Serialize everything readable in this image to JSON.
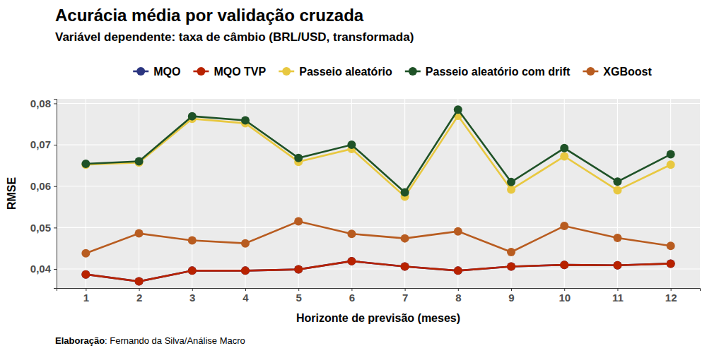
{
  "chart_data": {
    "type": "line",
    "title": "Acurácia média por validação cruzada",
    "subtitle": "Variável dependente: taxa de câmbio (BRL/USD, transformada)",
    "caption": "Elaboração: Fernando da Silva/Análise Macro",
    "x_label": "Horizonte de previsão (meses)",
    "y_label": "RMSE",
    "x": [
      1,
      2,
      3,
      4,
      5,
      6,
      7,
      8,
      9,
      10,
      11,
      12
    ],
    "xlim": [
      0.45,
      12.55
    ],
    "xticks": [
      1,
      2,
      3,
      4,
      5,
      6,
      7,
      8,
      9,
      10,
      11,
      12
    ],
    "ylim": [
      0.0354,
      0.0811
    ],
    "yticks": [
      {
        "value": 0.04,
        "label": "0,04"
      },
      {
        "value": 0.05,
        "label": "0,05"
      },
      {
        "value": 0.06,
        "label": "0,06"
      },
      {
        "value": 0.07,
        "label": "0,07"
      },
      {
        "value": 0.08,
        "label": "0,08"
      }
    ],
    "grid": true,
    "legend": "top",
    "marker": "circle",
    "series": [
      {
        "name": "MQO",
        "color": "#2b3580",
        "values": [
          0.0387,
          0.037,
          0.0396,
          0.0396,
          0.0399,
          0.0419,
          0.0406,
          0.0396,
          0.0406,
          0.041,
          0.0409,
          0.0413
        ]
      },
      {
        "name": "MQO TVP",
        "color": "#b82200",
        "values": [
          0.0387,
          0.037,
          0.0396,
          0.0396,
          0.0399,
          0.0419,
          0.0406,
          0.0396,
          0.0406,
          0.041,
          0.0409,
          0.0413
        ]
      },
      {
        "name": "Passeio aleatório",
        "color": "#e8c840",
        "values": [
          0.0652,
          0.0657,
          0.0763,
          0.0752,
          0.0659,
          0.069,
          0.0575,
          0.077,
          0.0592,
          0.0672,
          0.059,
          0.0652
        ]
      },
      {
        "name": "Passeio aleatório com drift",
        "color": "#1f5227",
        "values": [
          0.0654,
          0.066,
          0.0769,
          0.0759,
          0.0668,
          0.07,
          0.0585,
          0.0785,
          0.061,
          0.0692,
          0.0611,
          0.0677
        ]
      },
      {
        "name": "XGBoost",
        "color": "#b85c20",
        "values": [
          0.0438,
          0.0486,
          0.0469,
          0.0462,
          0.0515,
          0.0485,
          0.0474,
          0.0491,
          0.0441,
          0.0504,
          0.0475,
          0.0456
        ]
      }
    ]
  }
}
